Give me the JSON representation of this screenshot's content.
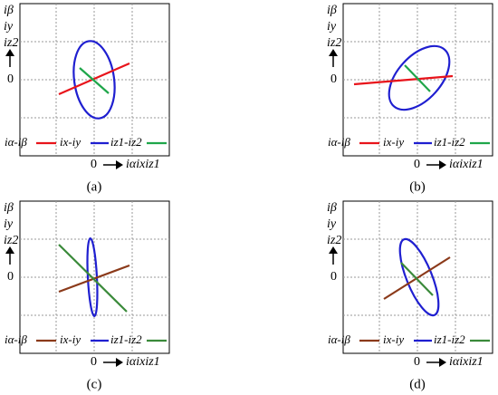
{
  "y_axis_label": [
    "iβ",
    "iy",
    "iz2"
  ],
  "x_axis_label": "iαixiz1",
  "origin_label": "0",
  "panels": [
    {
      "caption": "(a)",
      "legend": [
        {
          "label": "iα-iβ",
          "color": "#e8141b"
        },
        {
          "label": "ix-iy",
          "color": "#1f1fd0"
        },
        {
          "label": "iz1-iz2",
          "color": "#1fa64a"
        }
      ]
    },
    {
      "caption": "(b)",
      "legend": [
        {
          "label": "iα-iβ",
          "color": "#e8141b"
        },
        {
          "label": "ix-iy",
          "color": "#1f1fd0"
        },
        {
          "label": "iz1-iz2",
          "color": "#1fa64a"
        }
      ]
    },
    {
      "caption": "(c)",
      "legend": [
        {
          "label": "iα-iβ",
          "color": "#8b3a1a"
        },
        {
          "label": "ix-iy",
          "color": "#1f1fd0"
        },
        {
          "label": "iz1-iz2",
          "color": "#3a8a3a"
        }
      ]
    },
    {
      "caption": "(d)",
      "legend": [
        {
          "label": "iα-iβ",
          "color": "#8b3a1a"
        },
        {
          "label": "ix-iy",
          "color": "#1f1fd0"
        },
        {
          "label": "iz1-iz2",
          "color": "#3a8a3a"
        }
      ]
    }
  ]
}
